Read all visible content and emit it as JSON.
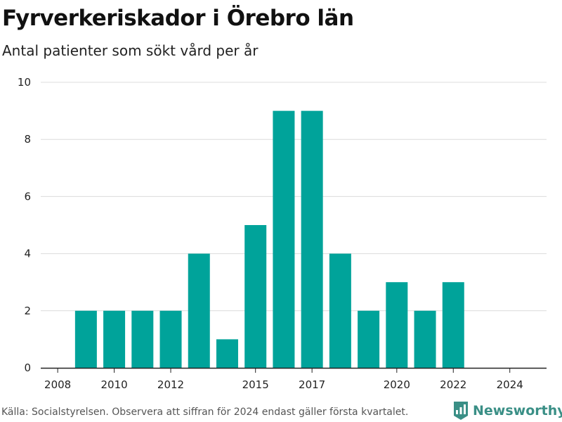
{
  "header": {
    "title": "Fyrverkeriskador i Örebro län",
    "subtitle": "Antal patienter som sökt vård per år"
  },
  "footer": {
    "note": "Källa: Socialstyrelsen. Observera att siffran för 2024 endast gäller första kvartalet.",
    "brand": "Newsworthy",
    "brand_icon": "newsworthy-logo-icon"
  },
  "colors": {
    "bar": "#00a39a",
    "grid": "#dcdcdc",
    "axis": "#222222",
    "brand": "#3a8f86"
  },
  "chart_data": {
    "type": "bar",
    "title": "Fyrverkeriskador i Örebro län",
    "subtitle": "Antal patienter som sökt vård per år",
    "xlabel": "",
    "ylabel": "",
    "x": [
      2009,
      2010,
      2011,
      2012,
      2013,
      2014,
      2015,
      2016,
      2017,
      2018,
      2019,
      2020,
      2021,
      2022
    ],
    "values": [
      2,
      2,
      2,
      2,
      4,
      1,
      5,
      9,
      9,
      4,
      2,
      3,
      2,
      3
    ],
    "xlim": [
      2007.4,
      2025.3
    ],
    "ylim": [
      0,
      10
    ],
    "x_ticks": [
      "2008",
      "2010",
      "2012",
      "2015",
      "2017",
      "2020",
      "2022",
      "2024"
    ],
    "y_ticks": [
      "0",
      "2",
      "4",
      "6",
      "8",
      "10"
    ],
    "grid": true,
    "legend": "none"
  }
}
